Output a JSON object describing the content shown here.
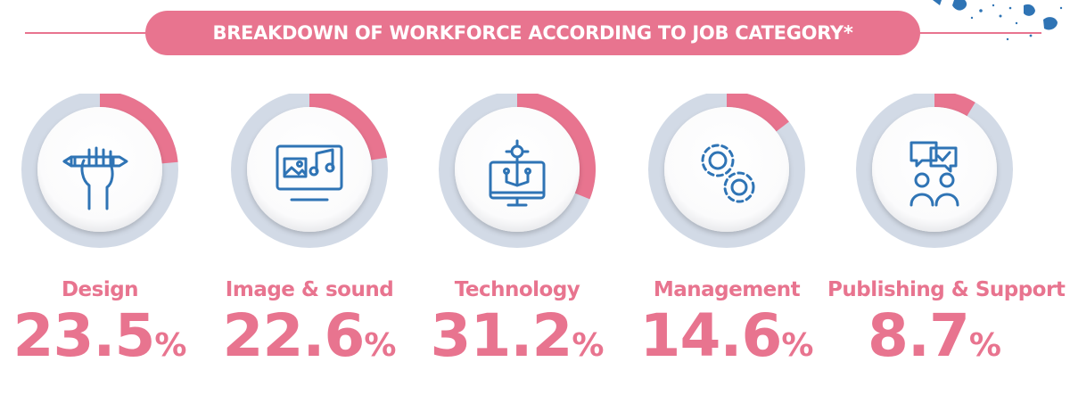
{
  "header": {
    "title": "BREAKDOWN OF WORKFORCE ACCORDING TO JOB CATEGORY*"
  },
  "colors": {
    "accent": "#e8748f",
    "track": "#d2dae6",
    "icon": "#2f74b5"
  },
  "chart_data": {
    "type": "pie",
    "title": "BREAKDOWN OF WORKFORCE ACCORDING TO JOB CATEGORY*",
    "categories": [
      "Design",
      "Image & sound",
      "Technology",
      "Management",
      "Publishing & Support"
    ],
    "values": [
      23.5,
      22.6,
      31.2,
      14.6,
      8.7
    ],
    "value_labels": [
      "23.5",
      "22.6",
      "31.2",
      "14.6",
      "8.7"
    ],
    "unit": "%",
    "icons": [
      "hand-pencil-icon",
      "monitor-image-music-icon",
      "monitor-circuit-icon",
      "gears-icon",
      "chat-people-icon"
    ]
  }
}
